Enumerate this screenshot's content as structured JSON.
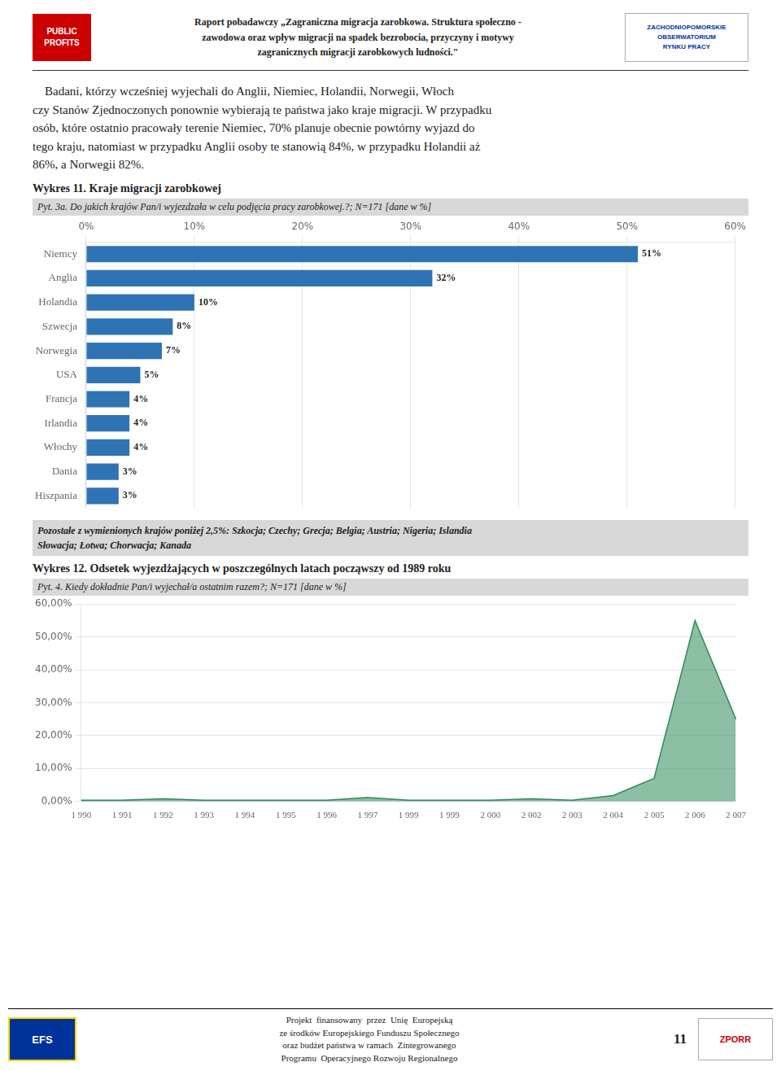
{
  "header": [
    "Raport pobadawczy „Zagraniczna migracja zarobkowa. Struktura społeczno -",
    "zawodowa oraz wpływ migracji na spadek bezrobocia, przyczyny i motywy",
    "zagranicznych migracji zarobkowych ludności.\""
  ],
  "logos": [
    [
      "PUBLIC",
      "PROFITS"
    ],
    [
      "ZACHODNIOPOMORSKIE",
      "OBSERWATORIUM",
      "RYNKU PRACY"
    ],
    [
      "EFS"
    ],
    [
      "ZPORR"
    ]
  ],
  "paragraph": "    Badani, którzy wcześniej wyjechali do Anglii, Niemiec, Holandii, Norwegii, Włoch\nczy Stanów Zjednoczonych ponownie wybierają te państwa jako kraje migracji. W przypadku\nosób, które ostatnio pracowały terenie Niemiec, 70% planuje obecnie powtórny wyjazd do\ntego kraju, natomiast w przypadku Anglii osoby te stanowią 84%, w przypadku Holandii aż\n86%, a Norwegii 82%.",
  "chart_data": [
    {
      "type": "bar",
      "orientation": "horizontal",
      "title": "Wykres 11. Kraje migracji zarobkowej",
      "subtitle": "Pyt. 3a. Do jakich krajów Pan/i wyjezdzała w celu podjęcia pracy zarobkowej.?; N=171 [dane w %]",
      "categories": [
        "Niemcy",
        "Anglia",
        "Holandia",
        "Szwecja",
        "Norwegia",
        "USA",
        "Francja",
        "Irlandia",
        "Włochy",
        "Dania",
        "Hiszpania"
      ],
      "values": [
        51,
        32,
        10,
        8,
        7,
        5,
        4,
        4,
        4,
        3,
        3
      ],
      "value_labels": [
        "51%",
        "32%",
        "10%",
        "8%",
        "7%",
        "5%",
        "4%",
        "4%",
        "4%",
        "3%",
        "3%"
      ],
      "data_labels": true,
      "color": "#2E74B5",
      "xlim": [
        0,
        60
      ],
      "xticks": [
        {
          "value": 0,
          "label": "0%"
        },
        {
          "value": 10,
          "label": "10%"
        },
        {
          "value": 20,
          "label": "20%"
        },
        {
          "value": 30,
          "label": "30%"
        },
        {
          "value": 40,
          "label": "40%"
        },
        {
          "value": 50,
          "label": "50%"
        },
        {
          "value": 60,
          "label": "60%"
        }
      ],
      "grid": true,
      "annotations": [
        "Pozostałe z wymienionych krajów poniżej 2,5%: Szkocja; Czechy; Grecja; Belgia; Austria; Nigeria; Islandia",
        "Słowacja; Łotwa; Chorwacja; Kanada"
      ]
    },
    {
      "type": "area",
      "title": "Wykres 12. Odsetek wyjezdżających w poszczególnych latach począwszy od 1989 roku",
      "subtitle": "Pyt. 4. Kiedy dokładnie Pan/i wyjechał/a ostatnim razem?; N=171 [dane w %]",
      "categories": [
        "1 990",
        "1 991",
        "1 992",
        "1 993",
        "1 994",
        "1 995",
        "1 996",
        "1 997",
        "1 999",
        "1 999",
        "2 000",
        "2 002",
        "2 003",
        "2 004",
        "2 005",
        "2 006",
        "2 007"
      ],
      "values": [
        0.4,
        0.4,
        0.8,
        0.4,
        0.4,
        0.4,
        0.4,
        1.2,
        0.4,
        0.4,
        0.4,
        0.8,
        0.4,
        1.8,
        7.0,
        55.0,
        25.0
      ],
      "color": "#2E8B57",
      "ylim": [
        0,
        60
      ],
      "yticks": [
        {
          "value": 0,
          "label": "0,00%"
        },
        {
          "value": 10,
          "label": "10,00%"
        },
        {
          "value": 20,
          "label": "20,00%"
        },
        {
          "value": 30,
          "label": "30,00%"
        },
        {
          "value": 40,
          "label": "40,00%"
        },
        {
          "value": 50,
          "label": "50,00%"
        },
        {
          "value": 60,
          "label": "60,00%"
        }
      ],
      "grid": true
    }
  ],
  "footer": "Projekt  finansowany  przez  Unię  Europejską\nze środków Europejskiego Funduszu Społecznego\noraz budżet państwa w ramach  Zintegrowanego\nProgramu  Operacyjnego Rozwoju Regionalnego",
  "page_number": "11"
}
